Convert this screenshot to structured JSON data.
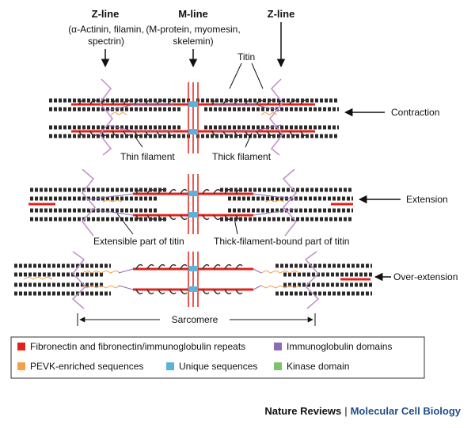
{
  "labels": {
    "z_line_left": "Z-line",
    "z_line_left_sub": [
      "(α-Actinin, filamin,",
      "spectrin)"
    ],
    "m_line": "M-line",
    "m_line_sub": [
      "(M-protein, myomesin,",
      "skelemin)"
    ],
    "z_line_right": "Z-line",
    "titin": "Titin",
    "thin_filament": "Thin filament",
    "thick_filament": "Thick filament",
    "contraction": "Contraction",
    "extension": "Extension",
    "extensible_part": "Extensible part of titin",
    "thick_bound_part": "Thick-filament-bound part of titin",
    "over_extension": "Over-extension",
    "sarcomere": "Sarcomere"
  },
  "legend": {
    "items": [
      {
        "label": "Fibronectin and fibronectin/immunoglobulin repeats",
        "color": "#e2231a"
      },
      {
        "label": "Immunoglobulin domains",
        "color": "#8e6bb4"
      },
      {
        "label": "PEVK-enriched sequences",
        "color": "#f4a04a"
      },
      {
        "label": "Unique sequences",
        "color": "#5ab4d9"
      },
      {
        "label": "Kinase domain",
        "color": "#7cc36b"
      }
    ]
  },
  "credit": {
    "publisher": "Nature Reviews",
    "separator": "|",
    "journal": "Molecular Cell Biology"
  }
}
